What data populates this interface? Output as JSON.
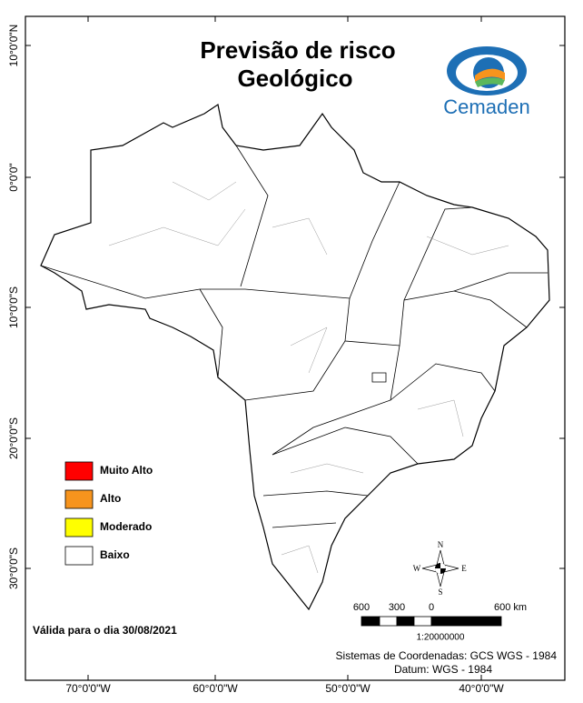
{
  "title": [
    "Previsão de risco",
    "Geológico"
  ],
  "logo": "Cemaden",
  "legend": [
    {
      "label": "Muito Alto",
      "color": "#ff0000"
    },
    {
      "label": "Alto",
      "color": "#f7941d"
    },
    {
      "label": "Moderado",
      "color": "#ffff00"
    },
    {
      "label": "Baixo",
      "color": "#ffffff"
    }
  ],
  "lat_labels": [
    "10°0'0\"N",
    "0°0'0\"",
    "10°0'0\"S",
    "20°0'0\"S",
    "30°0'0\"S"
  ],
  "lon_labels": [
    "70°0'0\"W",
    "60°0'0\"W",
    "50°0'0\"W",
    "40°0'0\"W"
  ],
  "compass": {
    "n": "N",
    "s": "S",
    "e": "E",
    "w": "W"
  },
  "scale": {
    "labels": [
      "600",
      "300",
      "0",
      "600 km"
    ],
    "ratio": "1:20000000"
  },
  "validity": "Válida para o dia 30/08/2021",
  "coordinates": [
    "Sistemas de Coordenadas: GCS WGS - 1984",
    "Datum: WGS - 1984"
  ]
}
